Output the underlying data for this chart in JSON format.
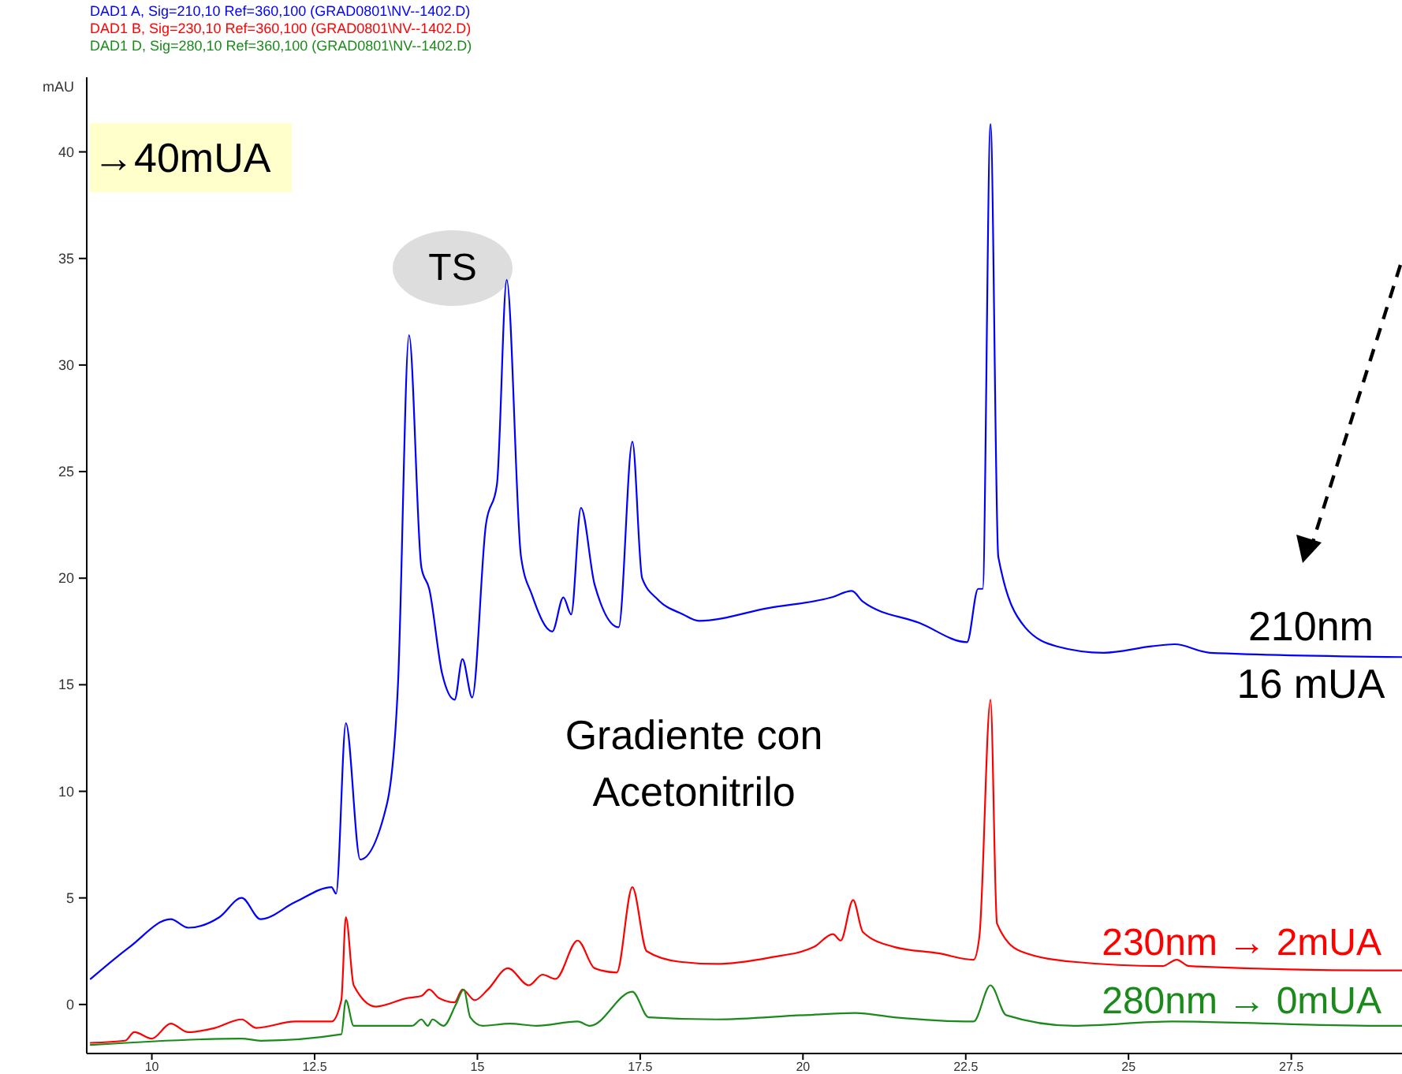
{
  "chart_data": {
    "type": "line",
    "ylabel": "mAU",
    "legend": "top left",
    "line_style": "solid",
    "marker": "none",
    "grid": false,
    "xlim": [
      9,
      29.2
    ],
    "ylim": [
      -2.3,
      43.5
    ],
    "xticks": [
      {
        "value": 10,
        "label": "10"
      },
      {
        "value": 12.5,
        "label": "12.5"
      },
      {
        "value": 15,
        "label": "15"
      },
      {
        "value": 17.5,
        "label": "17.5"
      },
      {
        "value": 20,
        "label": "20"
      },
      {
        "value": 22.5,
        "label": "22.5"
      },
      {
        "value": 25,
        "label": "25"
      },
      {
        "value": 27.5,
        "label": "27.5"
      }
    ],
    "yticks": [
      0,
      5,
      10,
      15,
      20,
      25,
      30,
      35,
      40
    ],
    "series": [
      {
        "name": "DAD1 A, Sig=210,10 Ref=360,100 (GRAD0801\\NV--1402.D)",
        "color": "#0000ff",
        "x": [
          9.06,
          9.66,
          10.29,
          10.56,
          11.04,
          11.38,
          11.67,
          12.2,
          12.76,
          12.83,
          12.98,
          13.2,
          13.61,
          13.78,
          13.95,
          14.14,
          14.26,
          14.46,
          14.65,
          14.77,
          14.92,
          15.13,
          15.3,
          15.45,
          15.67,
          15.84,
          16.15,
          16.32,
          16.44,
          16.59,
          16.8,
          17.17,
          17.38,
          17.53,
          17.77,
          18.16,
          18.4,
          19.47,
          20.44,
          20.75,
          20.92,
          21.79,
          22.52,
          22.69,
          22.76,
          22.88,
          23.0,
          23.41,
          23.9,
          24.62,
          25.35,
          25.71,
          26.25,
          29.2
        ],
        "values": [
          1.2,
          2.7,
          4.0,
          3.6,
          4.1,
          5.0,
          4.0,
          4.8,
          5.5,
          5.2,
          13.2,
          6.8,
          9.4,
          15,
          31.4,
          20.5,
          19.5,
          15.5,
          14.3,
          16.2,
          14.4,
          22.5,
          24.4,
          34.0,
          21,
          19.2,
          17.5,
          19.1,
          18.3,
          23.3,
          19.7,
          17.7,
          26.4,
          20.0,
          19.0,
          18.3,
          18.0,
          18.6,
          19.1,
          19.4,
          18.9,
          17.9,
          17.0,
          19.5,
          19.5,
          41.3,
          21.0,
          17.7,
          16.8,
          16.5,
          16.8,
          16.9,
          16.5,
          16.3
        ]
      },
      {
        "name": "DAD1 B, Sig=230,10 Ref=360,100 (GRAD0801\\NV--1402.D)",
        "color": "#ff0000",
        "x": [
          9.06,
          9.59,
          9.73,
          10,
          10.29,
          10.56,
          10.97,
          11.38,
          11.6,
          12.2,
          12.76,
          12.91,
          12.98,
          13.1,
          13.44,
          13.92,
          14.14,
          14.26,
          14.41,
          14.65,
          14.77,
          14.96,
          15.16,
          15.47,
          15.79,
          16.0,
          16.2,
          16.54,
          16.8,
          17.14,
          17.38,
          17.6,
          18.11,
          18.67,
          19.49,
          20.17,
          20.46,
          20.58,
          20.77,
          20.92,
          21.4,
          22.08,
          22.62,
          22.71,
          22.88,
          22.98,
          23.34,
          24.16,
          25.52,
          25.74,
          25.93,
          28.81,
          29.2
        ],
        "values": [
          -1.8,
          -1.7,
          -1.3,
          -1.6,
          -0.9,
          -1.3,
          -1.1,
          -0.7,
          -1.1,
          -0.8,
          -0.8,
          0.2,
          4.1,
          0.9,
          -0.1,
          0.3,
          0.4,
          0.7,
          0.3,
          0.1,
          0.7,
          0.2,
          0.7,
          1.7,
          0.9,
          1.4,
          1.2,
          3.0,
          1.7,
          1.5,
          5.5,
          2.5,
          2.0,
          1.9,
          2.2,
          2.7,
          3.3,
          3.0,
          4.9,
          3.4,
          2.7,
          2.4,
          2.1,
          3.2,
          14.3,
          3.8,
          2.5,
          2.0,
          1.8,
          2.1,
          1.8,
          1.6,
          1.6
        ]
      },
      {
        "name": "DAD1 D, Sig=280,10 Ref=360,100 (GRAD0801\\NV--1402.D)",
        "color": "#1a8a1a",
        "x": [
          9.06,
          11.38,
          11.67,
          12.91,
          12.98,
          13.1,
          14.0,
          14.14,
          14.24,
          14.31,
          14.48,
          14.67,
          14.79,
          14.89,
          15.08,
          15.5,
          15.91,
          16.54,
          16.73,
          17.38,
          17.63,
          18.67,
          20.02,
          20.8,
          21.4,
          22.62,
          22.88,
          23.12,
          24.16,
          25.67,
          28.81,
          29.2
        ],
        "values": [
          -1.9,
          -1.6,
          -1.7,
          -1.4,
          0.2,
          -1.0,
          -1.0,
          -0.7,
          -1.0,
          -0.7,
          -1.0,
          0.0,
          0.7,
          -0.6,
          -1.0,
          -0.9,
          -1.0,
          -0.8,
          -1.0,
          0.6,
          -0.6,
          -0.7,
          -0.5,
          -0.4,
          -0.6,
          -0.8,
          0.9,
          -0.5,
          -1.0,
          -0.8,
          -1.0,
          -1.0
        ]
      }
    ],
    "annotations": [
      "→40mUA",
      "TS",
      {
        "text": "210nm\n16 mUA",
        "x": 27.8,
        "y": 16.4
      },
      "230nm → 2mUA",
      "280nm → 0mUA",
      "Gradiente con\nAcetonitrilo"
    ]
  }
}
